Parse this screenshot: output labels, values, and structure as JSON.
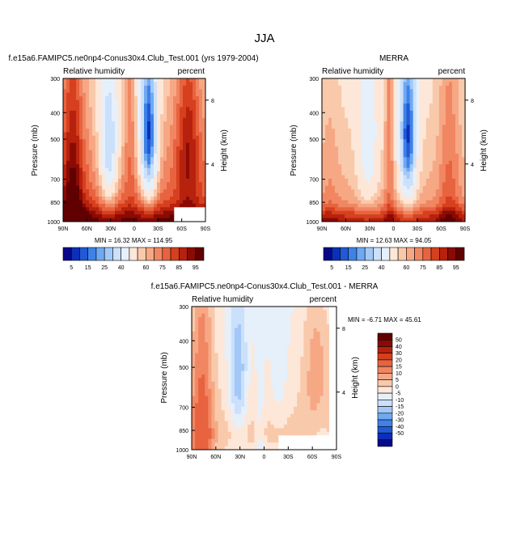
{
  "figure": {
    "season": "JJA"
  },
  "colors": {
    "abs": [
      "#08088c",
      "#0b2fb8",
      "#2159d6",
      "#3e82e8",
      "#6fa9f3",
      "#a3c8f7",
      "#cbe0fa",
      "#e6f0fb",
      "#fde7d8",
      "#f9c9ab",
      "#f6a885",
      "#f18662",
      "#e8633f",
      "#d6401f",
      "#b6220d",
      "#8c0a04",
      "#600000"
    ],
    "diff": [
      "#08088c",
      "#0b2fb8",
      "#2159d6",
      "#3e82e8",
      "#6fa9f3",
      "#a3c8f7",
      "#cbe0fa",
      "#e6f0fb",
      "#fde7d8",
      "#f9c9ab",
      "#f6a885",
      "#f18662",
      "#e8633f",
      "#d6401f",
      "#b6220d",
      "#8c0a04",
      "#600000"
    ]
  },
  "chart_data": [
    {
      "type": "heatmap",
      "id": "model",
      "title": "f.e15a6.FAMIPC5.ne0np4-Conus30x4.Club_Test.001 (yrs 1979-2004)",
      "left_label": "Relative humidity",
      "right_label": "percent",
      "ylabel": "Pressure (mb)",
      "ylabel_right": "Height (km)",
      "x_ticks": [
        "90N",
        "60N",
        "30N",
        "0",
        "30S",
        "60S",
        "90S"
      ],
      "y_ticks": [
        "300",
        "400",
        "500",
        "700",
        "850",
        "1000"
      ],
      "y_ticks_right": [
        "8",
        "4"
      ],
      "stats": "MIN =  16.32  MAX = 114.95",
      "min": 16.32,
      "max": 114.95,
      "style": "model"
    },
    {
      "type": "heatmap",
      "id": "obs",
      "title": "MERRA",
      "left_label": "Relative humidity",
      "right_label": "percent",
      "ylabel": "Pressure (mb)",
      "ylabel_right": "Height (km)",
      "x_ticks": [
        "90N",
        "60N",
        "30N",
        "0",
        "30S",
        "60S",
        "90S"
      ],
      "y_ticks": [
        "300",
        "400",
        "500",
        "700",
        "850",
        "1000"
      ],
      "y_ticks_right": [
        "8",
        "4"
      ],
      "stats": "MIN =  12.63  MAX =  94.05",
      "min": 12.63,
      "max": 94.05,
      "style": "obs"
    },
    {
      "type": "heatmap",
      "id": "diff",
      "title": "f.e15a6.FAMIPC5.ne0np4-Conus30x4.Club_Test.001 - MERRA",
      "left_label": "Relative humidity",
      "right_label": "percent",
      "ylabel": "Pressure (mb)",
      "ylabel_right": "Height (km)",
      "x_ticks": [
        "90N",
        "60N",
        "30N",
        "0",
        "30S",
        "60S",
        "90S"
      ],
      "y_ticks": [
        "300",
        "400",
        "500",
        "700",
        "850",
        "1000"
      ],
      "y_ticks_right": [
        "8",
        "4"
      ],
      "stats": "MIN =  -6.71  MAX =  45.61",
      "min": -6.71,
      "max": 45.61,
      "style": "diff"
    }
  ],
  "colorbars": {
    "abs_labels": [
      "5",
      "15",
      "25",
      "40",
      "60",
      "75",
      "85",
      "95"
    ],
    "diff_labels": [
      "50",
      "40",
      "30",
      "20",
      "15",
      "10",
      "5",
      "0",
      "-5",
      "-10",
      "-15",
      "-20",
      "-30",
      "-40",
      "-50"
    ]
  }
}
